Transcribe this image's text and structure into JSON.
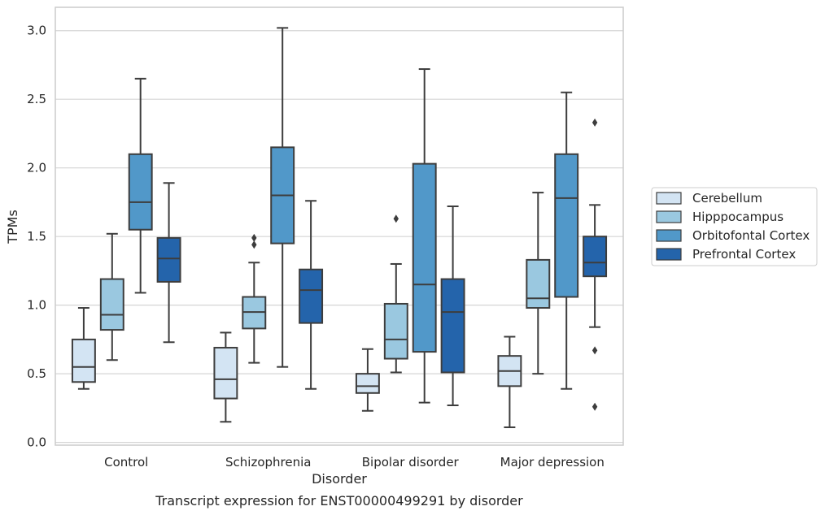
{
  "caption": "Transcript expression for ENST00000499291 by disorder",
  "chart_data": {
    "type": "boxplot",
    "xlabel": "Disorder",
    "ylabel": "TPMs",
    "categories": [
      "Control",
      "Schizophrenia",
      "Bipolar disorder",
      "Major depression"
    ],
    "ylim": [
      -0.02,
      3.17
    ],
    "yticks": [
      "0.0",
      "0.5",
      "1.0",
      "1.5",
      "2.0",
      "2.5",
      "3.0"
    ],
    "grid": "horizontal",
    "legend_position": "right",
    "series": [
      {
        "name": "Cerebellum",
        "color": "#d3e4f3",
        "boxes": [
          {
            "min": 0.39,
            "q1": 0.44,
            "median": 0.55,
            "q3": 0.75,
            "max": 0.98,
            "outliers": []
          },
          {
            "min": 0.15,
            "q1": 0.32,
            "median": 0.46,
            "q3": 0.69,
            "max": 0.8,
            "outliers": []
          },
          {
            "min": 0.23,
            "q1": 0.36,
            "median": 0.41,
            "q3": 0.5,
            "max": 0.68,
            "outliers": []
          },
          {
            "min": 0.11,
            "q1": 0.41,
            "median": 0.52,
            "q3": 0.63,
            "max": 0.77,
            "outliers": []
          }
        ]
      },
      {
        "name": "Hipppocampus",
        "color": "#9ac8e0",
        "boxes": [
          {
            "min": 0.6,
            "q1": 0.82,
            "median": 0.93,
            "q3": 1.19,
            "max": 1.52,
            "outliers": []
          },
          {
            "min": 0.58,
            "q1": 0.83,
            "median": 0.95,
            "q3": 1.06,
            "max": 1.31,
            "outliers": [
              1.44,
              1.49
            ]
          },
          {
            "min": 0.51,
            "q1": 0.61,
            "median": 0.75,
            "q3": 1.01,
            "max": 1.3,
            "outliers": [
              1.63
            ]
          },
          {
            "min": 0.5,
            "q1": 0.98,
            "median": 1.05,
            "q3": 1.33,
            "max": 1.82,
            "outliers": []
          }
        ]
      },
      {
        "name": "Orbitofontal Cortex",
        "color": "#5198c9",
        "boxes": [
          {
            "min": 1.09,
            "q1": 1.55,
            "median": 1.75,
            "q3": 2.1,
            "max": 2.65,
            "outliers": []
          },
          {
            "min": 0.55,
            "q1": 1.45,
            "median": 1.8,
            "q3": 2.15,
            "max": 3.02,
            "outliers": []
          },
          {
            "min": 0.29,
            "q1": 0.66,
            "median": 1.15,
            "q3": 2.03,
            "max": 2.72,
            "outliers": []
          },
          {
            "min": 0.39,
            "q1": 1.06,
            "median": 1.78,
            "q3": 2.1,
            "max": 2.55,
            "outliers": []
          }
        ]
      },
      {
        "name": "Prefrontal Cortex",
        "color": "#2464ab",
        "boxes": [
          {
            "min": 0.73,
            "q1": 1.17,
            "median": 1.34,
            "q3": 1.49,
            "max": 1.89,
            "outliers": []
          },
          {
            "min": 0.39,
            "q1": 0.87,
            "median": 1.11,
            "q3": 1.26,
            "max": 1.76,
            "outliers": []
          },
          {
            "min": 0.27,
            "q1": 0.51,
            "median": 0.95,
            "q3": 1.19,
            "max": 1.72,
            "outliers": []
          },
          {
            "min": 0.84,
            "q1": 1.21,
            "median": 1.31,
            "q3": 1.5,
            "max": 1.73,
            "outliers": [
              2.33,
              0.67,
              0.26
            ]
          }
        ]
      }
    ]
  }
}
